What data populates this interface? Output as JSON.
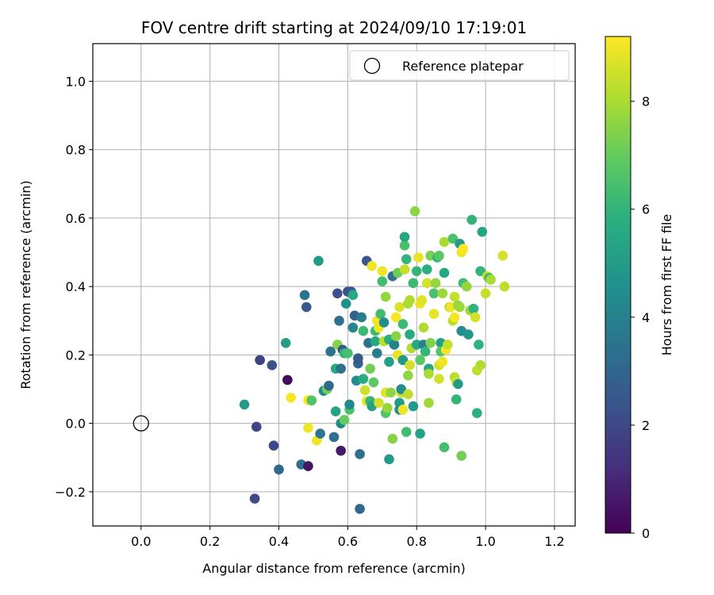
{
  "chart_data": {
    "type": "scatter",
    "title": "FOV centre drift starting at 2024/09/10 17:19:01",
    "xlabel": "Angular distance from reference (arcmin)",
    "ylabel": "Rotation from reference (arcmin)",
    "xlim": [
      -0.14,
      1.26
    ],
    "ylim": [
      -0.3,
      1.11
    ],
    "xticks": [
      0.0,
      0.2,
      0.4,
      0.6,
      0.8,
      1.0,
      1.2
    ],
    "xtick_labels": [
      "0.0",
      "0.2",
      "0.4",
      "0.6",
      "0.8",
      "1.0",
      "1.2"
    ],
    "yticks": [
      -0.2,
      0.0,
      0.2,
      0.4,
      0.6,
      0.8,
      1.0
    ],
    "ytick_labels": [
      "−0.2",
      "0.0",
      "0.2",
      "0.4",
      "0.6",
      "0.8",
      "1.0"
    ],
    "grid": true,
    "colormap": "viridis",
    "colorbar": {
      "label": "Hours from first FF file",
      "range": [
        0,
        9.2
      ],
      "ticks": [
        0,
        2,
        4,
        6,
        8
      ],
      "tick_labels": [
        "0",
        "2",
        "4",
        "6",
        "8"
      ]
    },
    "reference": {
      "name": "Reference platepar",
      "x": 0.0,
      "y": 0.0
    },
    "legend": {
      "position": "top-right",
      "entries": [
        "Reference platepar"
      ]
    },
    "points": [
      [
        0.3,
        0.055,
        4.9
      ],
      [
        0.33,
        -0.22,
        2.0
      ],
      [
        0.335,
        -0.01,
        1.9
      ],
      [
        0.345,
        0.185,
        1.8
      ],
      [
        0.38,
        0.17,
        2.3
      ],
      [
        0.385,
        -0.065,
        2.0
      ],
      [
        0.4,
        -0.135,
        3.1
      ],
      [
        0.42,
        0.235,
        5.1
      ],
      [
        0.425,
        0.127,
        0.3
      ],
      [
        0.435,
        0.075,
        9.1
      ],
      [
        0.465,
        -0.12,
        3.3
      ],
      [
        0.475,
        0.375,
        3.6
      ],
      [
        0.48,
        0.34,
        2.6
      ],
      [
        0.485,
        0.068,
        9.2
      ],
      [
        0.485,
        -0.013,
        9.0
      ],
      [
        0.485,
        -0.125,
        0.5
      ],
      [
        0.495,
        0.067,
        6.6
      ],
      [
        0.51,
        -0.05,
        9.0
      ],
      [
        0.515,
        0.475,
        4.9
      ],
      [
        0.52,
        -0.03,
        3.6
      ],
      [
        0.53,
        0.095,
        4.4
      ],
      [
        0.54,
        0.1,
        7.2
      ],
      [
        0.545,
        0.11,
        3.1
      ],
      [
        0.55,
        0.21,
        3.5
      ],
      [
        0.56,
        -0.04,
        3.3
      ],
      [
        0.565,
        0.035,
        5.4
      ],
      [
        0.565,
        0.16,
        5.6
      ],
      [
        0.57,
        0.23,
        7.5
      ],
      [
        0.57,
        0.38,
        2.2
      ],
      [
        0.575,
        0.3,
        3.3
      ],
      [
        0.58,
        0.0,
        4.3
      ],
      [
        0.58,
        -0.08,
        0.6
      ],
      [
        0.58,
        0.16,
        3.4
      ],
      [
        0.585,
        0.215,
        2.5
      ],
      [
        0.59,
        0.01,
        7.0
      ],
      [
        0.59,
        0.205,
        5.9
      ],
      [
        0.595,
        0.35,
        4.6
      ],
      [
        0.6,
        0.385,
        2.3
      ],
      [
        0.6,
        0.205,
        6.4
      ],
      [
        0.605,
        0.04,
        6.6
      ],
      [
        0.605,
        0.055,
        4.3
      ],
      [
        0.61,
        0.385,
        2.6
      ],
      [
        0.615,
        0.375,
        5.6
      ],
      [
        0.615,
        0.28,
        4.2
      ],
      [
        0.62,
        0.315,
        2.8
      ],
      [
        0.625,
        0.125,
        4.5
      ],
      [
        0.63,
        0.175,
        3.0
      ],
      [
        0.63,
        0.19,
        2.6
      ],
      [
        0.635,
        -0.09,
        3.4
      ],
      [
        0.635,
        -0.25,
        3.1
      ],
      [
        0.64,
        0.31,
        3.9
      ],
      [
        0.645,
        0.27,
        6.2
      ],
      [
        0.645,
        0.13,
        5.7
      ],
      [
        0.65,
        0.097,
        8.5
      ],
      [
        0.655,
        0.475,
        2.4
      ],
      [
        0.655,
        0.065,
        8.9
      ],
      [
        0.66,
        0.235,
        3.4
      ],
      [
        0.665,
        0.16,
        7.2
      ],
      [
        0.665,
        0.065,
        6.0
      ],
      [
        0.67,
        0.46,
        9.0
      ],
      [
        0.67,
        0.05,
        5.2
      ],
      [
        0.675,
        0.12,
        6.9
      ],
      [
        0.68,
        0.24,
        5.5
      ],
      [
        0.68,
        0.27,
        6.2
      ],
      [
        0.685,
        0.3,
        9.1
      ],
      [
        0.685,
        0.205,
        3.9
      ],
      [
        0.69,
        0.28,
        9.0
      ],
      [
        0.69,
        0.06,
        8.6
      ],
      [
        0.695,
        0.32,
        6.3
      ],
      [
        0.7,
        0.415,
        6.3
      ],
      [
        0.7,
        0.445,
        9.0
      ],
      [
        0.705,
        0.24,
        8.2
      ],
      [
        0.705,
        0.295,
        4.4
      ],
      [
        0.71,
        0.37,
        7.7
      ],
      [
        0.71,
        0.03,
        6.6
      ],
      [
        0.71,
        0.09,
        8.8
      ],
      [
        0.715,
        0.045,
        7.7
      ],
      [
        0.72,
        -0.105,
        5.0
      ],
      [
        0.72,
        0.18,
        5.2
      ],
      [
        0.72,
        0.245,
        5.7
      ],
      [
        0.725,
        0.09,
        7.6
      ],
      [
        0.73,
        -0.045,
        7.5
      ],
      [
        0.73,
        0.43,
        3.5
      ],
      [
        0.735,
        0.23,
        4.0
      ],
      [
        0.74,
        0.255,
        7.5
      ],
      [
        0.74,
        0.31,
        9.1
      ],
      [
        0.745,
        0.2,
        8.9
      ],
      [
        0.745,
        0.44,
        7.1
      ],
      [
        0.75,
        0.34,
        8.7
      ],
      [
        0.75,
        0.06,
        5.0
      ],
      [
        0.75,
        0.04,
        4.5
      ],
      [
        0.755,
        0.09,
        8.4
      ],
      [
        0.755,
        0.1,
        4.4
      ],
      [
        0.76,
        0.185,
        4.9
      ],
      [
        0.76,
        0.29,
        6.2
      ],
      [
        0.76,
        0.04,
        9.0
      ],
      [
        0.765,
        0.45,
        8.4
      ],
      [
        0.765,
        0.52,
        6.5
      ],
      [
        0.765,
        0.545,
        5.4
      ],
      [
        0.77,
        -0.025,
        6.3
      ],
      [
        0.77,
        0.48,
        6.0
      ],
      [
        0.775,
        0.35,
        8.0
      ],
      [
        0.775,
        0.14,
        7.6
      ],
      [
        0.775,
        0.085,
        8.3
      ],
      [
        0.78,
        0.36,
        8.1
      ],
      [
        0.78,
        0.26,
        5.6
      ],
      [
        0.78,
        0.17,
        8.6
      ],
      [
        0.785,
        0.22,
        8.1
      ],
      [
        0.79,
        0.41,
        6.2
      ],
      [
        0.79,
        0.05,
        5.0
      ],
      [
        0.795,
        0.62,
        7.6
      ],
      [
        0.8,
        0.445,
        6.0
      ],
      [
        0.8,
        0.23,
        5.5
      ],
      [
        0.805,
        0.485,
        8.9
      ],
      [
        0.81,
        0.35,
        9.0
      ],
      [
        0.81,
        0.185,
        6.8
      ],
      [
        0.81,
        -0.03,
        5.3
      ],
      [
        0.815,
        0.36,
        8.8
      ],
      [
        0.82,
        0.28,
        8.1
      ],
      [
        0.82,
        0.23,
        4.0
      ],
      [
        0.825,
        0.21,
        6.0
      ],
      [
        0.83,
        0.41,
        8.6
      ],
      [
        0.83,
        0.45,
        5.8
      ],
      [
        0.835,
        0.16,
        5.5
      ],
      [
        0.835,
        0.145,
        8.0
      ],
      [
        0.835,
        0.06,
        7.8
      ],
      [
        0.84,
        0.235,
        7.4
      ],
      [
        0.84,
        0.49,
        7.3
      ],
      [
        0.85,
        0.32,
        8.9
      ],
      [
        0.85,
        0.38,
        6.5
      ],
      [
        0.855,
        0.41,
        7.7
      ],
      [
        0.86,
        0.485,
        5.9
      ],
      [
        0.865,
        0.13,
        8.6
      ],
      [
        0.865,
        0.17,
        8.6
      ],
      [
        0.865,
        0.49,
        6.8
      ],
      [
        0.87,
        0.235,
        5.2
      ],
      [
        0.87,
        0.21,
        6.7
      ],
      [
        0.875,
        0.18,
        9.0
      ],
      [
        0.875,
        0.38,
        7.8
      ],
      [
        0.88,
        0.53,
        8.0
      ],
      [
        0.88,
        -0.07,
        6.4
      ],
      [
        0.88,
        0.44,
        5.5
      ],
      [
        0.885,
        0.215,
        9.1
      ],
      [
        0.89,
        0.23,
        8.4
      ],
      [
        0.895,
        0.34,
        8.2
      ],
      [
        0.9,
        0.34,
        9.0
      ],
      [
        0.905,
        0.54,
        6.5
      ],
      [
        0.905,
        0.3,
        8.2
      ],
      [
        0.91,
        0.135,
        8.2
      ],
      [
        0.91,
        0.37,
        8.4
      ],
      [
        0.91,
        0.31,
        9.1
      ],
      [
        0.915,
        0.12,
        8.6
      ],
      [
        0.915,
        0.07,
        6.0
      ],
      [
        0.92,
        0.115,
        5.0
      ],
      [
        0.92,
        0.345,
        7.7
      ],
      [
        0.925,
        0.525,
        5.0
      ],
      [
        0.925,
        0.34,
        7.8
      ],
      [
        0.93,
        0.27,
        4.4
      ],
      [
        0.93,
        0.5,
        9.0
      ],
      [
        0.93,
        -0.095,
        7.2
      ],
      [
        0.935,
        0.51,
        9.2
      ],
      [
        0.935,
        0.41,
        6.3
      ],
      [
        0.945,
        0.4,
        7.7
      ],
      [
        0.95,
        0.26,
        4.8
      ],
      [
        0.955,
        0.33,
        7.9
      ],
      [
        0.96,
        0.595,
        6.0
      ],
      [
        0.965,
        0.335,
        5.9
      ],
      [
        0.97,
        0.31,
        8.6
      ],
      [
        0.975,
        0.155,
        8.3
      ],
      [
        0.975,
        0.03,
        5.8
      ],
      [
        0.98,
        0.23,
        5.9
      ],
      [
        0.985,
        0.445,
        6.0
      ],
      [
        0.985,
        0.17,
        8.1
      ],
      [
        0.99,
        0.56,
        5.4
      ],
      [
        1.0,
        0.38,
        8.4
      ],
      [
        1.005,
        0.43,
        8.5
      ],
      [
        1.01,
        0.425,
        6.2
      ],
      [
        1.015,
        0.42,
        8.0
      ],
      [
        1.05,
        0.49,
        8.6
      ],
      [
        1.055,
        0.4,
        8.3
      ]
    ]
  }
}
